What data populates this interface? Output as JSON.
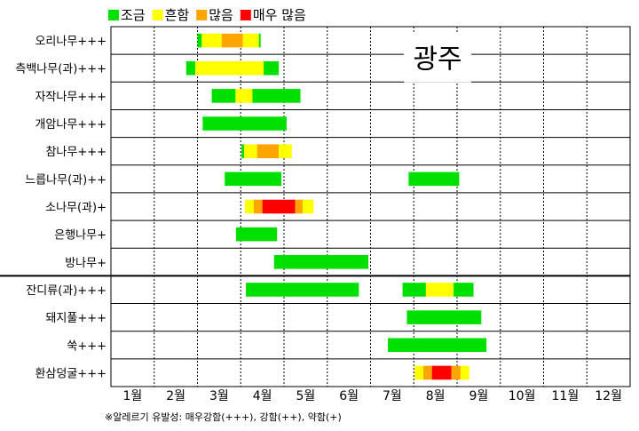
{
  "chart_data": {
    "type": "bar",
    "title": "광주",
    "legend": [
      {
        "key": "low",
        "label": "조금",
        "color": "#00e000"
      },
      {
        "key": "moderate",
        "label": "흔함",
        "color": "#ffff00"
      },
      {
        "key": "high",
        "label": "많음",
        "color": "#ffa500"
      },
      {
        "key": "very_high",
        "label": "매우 많음",
        "color": "#ff0000"
      }
    ],
    "legend_position": "top-left",
    "months": [
      "1월",
      "2월",
      "3월",
      "4월",
      "5월",
      "6월",
      "7월",
      "8월",
      "9월",
      "10월",
      "11월",
      "12월"
    ],
    "x_range": [
      1,
      13
    ],
    "grid": true,
    "rows": [
      {
        "label": "오리나무+++",
        "segments": [
          {
            "start": 3.0,
            "end": 3.1,
            "level": "low"
          },
          {
            "start": 3.1,
            "end": 3.56,
            "level": "moderate"
          },
          {
            "start": 3.56,
            "end": 4.05,
            "level": "high"
          },
          {
            "start": 4.05,
            "end": 4.42,
            "level": "moderate"
          },
          {
            "start": 4.42,
            "end": 4.46,
            "level": "low"
          }
        ]
      },
      {
        "label": "측백나무(과)+++",
        "segments": [
          {
            "start": 2.74,
            "end": 2.95,
            "level": "low"
          },
          {
            "start": 2.95,
            "end": 4.53,
            "level": "moderate"
          },
          {
            "start": 4.53,
            "end": 4.88,
            "level": "low"
          }
        ]
      },
      {
        "label": "자작나무+++",
        "segments": [
          {
            "start": 3.33,
            "end": 3.88,
            "level": "low"
          },
          {
            "start": 3.88,
            "end": 4.27,
            "level": "moderate"
          },
          {
            "start": 4.27,
            "end": 5.38,
            "level": "low"
          }
        ]
      },
      {
        "label": "개암나무+++",
        "segments": [
          {
            "start": 3.12,
            "end": 5.06,
            "level": "low"
          }
        ]
      },
      {
        "label": "참나무+++",
        "segments": [
          {
            "start": 4.02,
            "end": 4.08,
            "level": "low"
          },
          {
            "start": 4.08,
            "end": 4.38,
            "level": "moderate"
          },
          {
            "start": 4.38,
            "end": 4.88,
            "level": "high"
          },
          {
            "start": 4.88,
            "end": 5.18,
            "level": "moderate"
          }
        ]
      },
      {
        "label": "느릅나무(과)++",
        "segments": [
          {
            "start": 3.63,
            "end": 4.94,
            "level": "low"
          },
          {
            "start": 7.88,
            "end": 9.05,
            "level": "low"
          }
        ]
      },
      {
        "label": "소나무(과)+",
        "segments": [
          {
            "start": 4.1,
            "end": 4.3,
            "level": "moderate"
          },
          {
            "start": 4.3,
            "end": 4.5,
            "level": "high"
          },
          {
            "start": 4.5,
            "end": 5.26,
            "level": "very_high"
          },
          {
            "start": 5.26,
            "end": 5.43,
            "level": "high"
          },
          {
            "start": 5.43,
            "end": 5.68,
            "level": "moderate"
          }
        ]
      },
      {
        "label": "은행나무+",
        "segments": [
          {
            "start": 3.89,
            "end": 4.84,
            "level": "low"
          }
        ]
      },
      {
        "label": "방나무+",
        "segments": [
          {
            "start": 4.77,
            "end": 6.95,
            "level": "low"
          }
        ]
      },
      {
        "label": "잔디류(과)+++",
        "segments": [
          {
            "start": 4.12,
            "end": 6.73,
            "level": "low"
          },
          {
            "start": 7.74,
            "end": 8.28,
            "level": "low"
          },
          {
            "start": 8.28,
            "end": 8.92,
            "level": "moderate"
          },
          {
            "start": 8.92,
            "end": 9.38,
            "level": "low"
          }
        ]
      },
      {
        "label": "돼지풀+++",
        "segments": [
          {
            "start": 7.84,
            "end": 9.56,
            "level": "low"
          }
        ]
      },
      {
        "label": "쑥+++",
        "segments": [
          {
            "start": 7.4,
            "end": 9.68,
            "level": "low"
          }
        ]
      },
      {
        "label": "환삼덩굴+++",
        "segments": [
          {
            "start": 8.02,
            "end": 8.22,
            "level": "moderate"
          },
          {
            "start": 8.22,
            "end": 8.42,
            "level": "high"
          },
          {
            "start": 8.42,
            "end": 8.87,
            "level": "very_high"
          },
          {
            "start": 8.87,
            "end": 9.08,
            "level": "high"
          },
          {
            "start": 9.08,
            "end": 9.28,
            "level": "moderate"
          }
        ]
      }
    ],
    "separator_after_row": 8
  },
  "footnote": "※알레르기 유발성: 매우강함(+++), 강함(++), 약함(+)"
}
